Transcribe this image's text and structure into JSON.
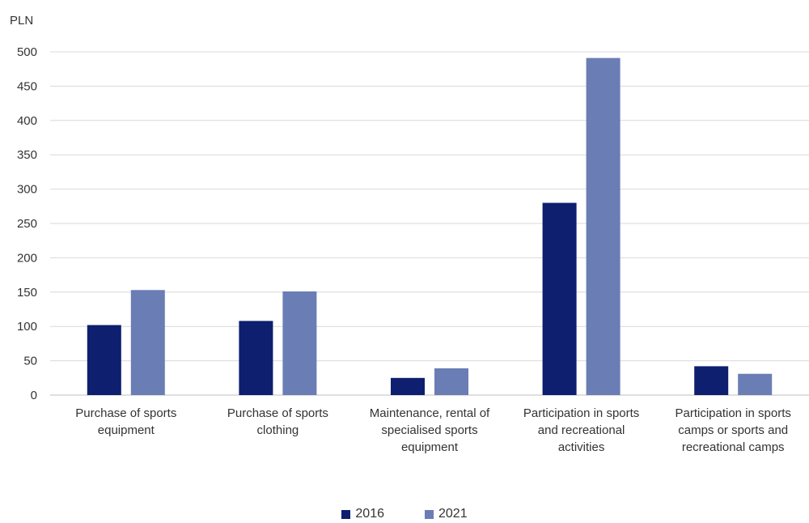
{
  "chart_data": {
    "type": "bar",
    "ylabel": "PLN",
    "ylim": [
      0,
      500
    ],
    "yticks": [
      0,
      50,
      100,
      150,
      200,
      250,
      300,
      350,
      400,
      450,
      500
    ],
    "grid": true,
    "legend_position": "bottom",
    "categories": [
      [
        "Purchase of sports",
        "equipment"
      ],
      [
        "Purchase of sports",
        "clothing"
      ],
      [
        "Maintenance, rental of",
        "specialised sports",
        "equipment"
      ],
      [
        "Participation in sports",
        "and recreational",
        "activities"
      ],
      [
        "Participation in sports",
        "camps or sports and",
        "recreational camps"
      ]
    ],
    "series": [
      {
        "name": "2016",
        "color": "#0d1f6e",
        "values": [
          102,
          108,
          25,
          280,
          42
        ]
      },
      {
        "name": "2021",
        "color": "#6b7db5",
        "values": [
          153,
          151,
          39,
          491,
          31
        ]
      }
    ]
  }
}
